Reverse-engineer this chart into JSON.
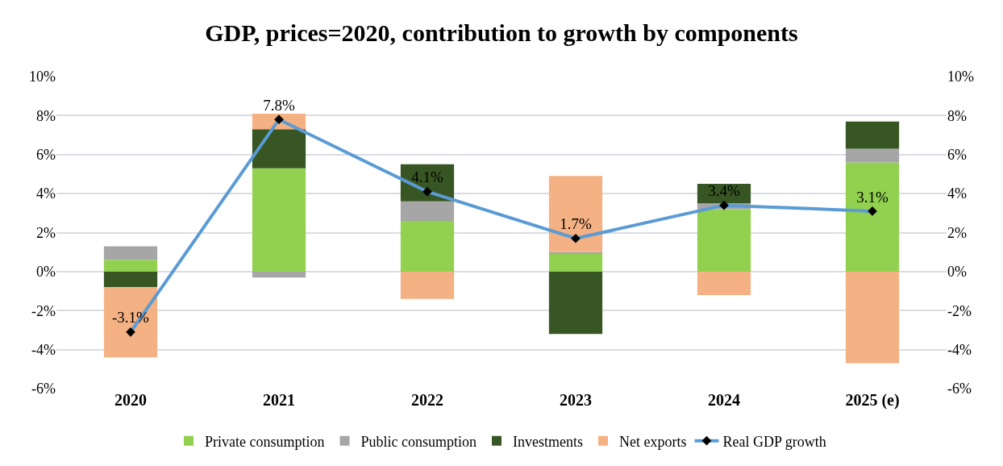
{
  "chart_data": {
    "type": "bar",
    "title": "GDP, prices=2020, contribution to growth by components",
    "categories": [
      "2020",
      "2021",
      "2022",
      "2023",
      "2024",
      "2025 (e)"
    ],
    "stacked": true,
    "series": [
      {
        "name": "Private consumption",
        "color": "#92d050",
        "values": [
          0.6,
          5.3,
          2.6,
          0.9,
          3.2,
          5.6
        ]
      },
      {
        "name": "Public consumption",
        "color": "#a6a6a6",
        "values": [
          0.7,
          -0.3,
          1.0,
          0.1,
          0.3,
          0.7
        ]
      },
      {
        "name": "Investments",
        "color": "#375623",
        "values": [
          -0.8,
          2.0,
          1.9,
          -3.2,
          1.0,
          1.4
        ]
      },
      {
        "name": "Net exports",
        "color": "#f4b183",
        "values": [
          -3.6,
          0.8,
          -1.4,
          3.9,
          -1.2,
          -4.7
        ]
      },
      {
        "name": "Real GDP growth",
        "type": "line",
        "color": "#5b9bd5",
        "marker": "diamond",
        "values": [
          -3.1,
          7.8,
          4.1,
          1.7,
          3.4,
          3.1
        ],
        "value_labels": [
          "-3.1%",
          "7.8%",
          "4.1%",
          "1.7%",
          "3.4%",
          "3.1%"
        ]
      }
    ],
    "ylim": [
      -6,
      10
    ],
    "yticks": [
      {
        "value": -6,
        "label": "-6%"
      },
      {
        "value": -4,
        "label": "-4%"
      },
      {
        "value": -2,
        "label": "-2%"
      },
      {
        "value": 0,
        "label": "0%"
      },
      {
        "value": 2,
        "label": "2%"
      },
      {
        "value": 4,
        "label": "4%"
      },
      {
        "value": 6,
        "label": "6%"
      },
      {
        "value": 8,
        "label": "8%"
      },
      {
        "value": 10,
        "label": "10%"
      }
    ],
    "y2lim": [
      -6,
      10
    ],
    "y2ticks": [
      {
        "value": -6,
        "label": "-6%"
      },
      {
        "value": -4,
        "label": "-4%"
      },
      {
        "value": -2,
        "label": "-2%"
      },
      {
        "value": 0,
        "label": "0%"
      },
      {
        "value": 2,
        "label": "2%"
      },
      {
        "value": 4,
        "label": "4%"
      },
      {
        "value": 6,
        "label": "6%"
      },
      {
        "value": 8,
        "label": "8%"
      },
      {
        "value": 10,
        "label": "10%"
      }
    ],
    "grid": "y",
    "legend": "bottom"
  }
}
